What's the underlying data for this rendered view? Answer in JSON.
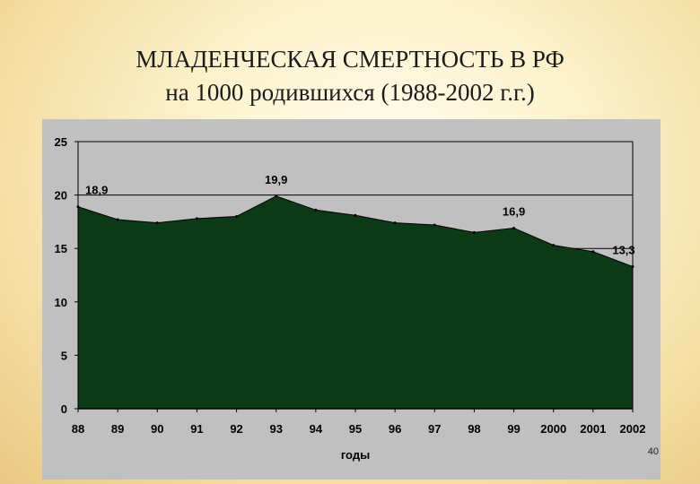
{
  "slide": {
    "title_line1": "МЛАДЕНЧЕСКАЯ СМЕРТНОСТЬ В РФ",
    "title_line2": "на 1000 родившихся (1988-2002 г.г.)",
    "page_number": "40"
  },
  "chart_data": {
    "type": "area",
    "title": "",
    "xlabel": "годы",
    "ylabel": "",
    "categories": [
      "88",
      "89",
      "90",
      "91",
      "92",
      "93",
      "94",
      "95",
      "96",
      "97",
      "98",
      "99",
      "2000",
      "2001",
      "2002"
    ],
    "values": [
      18.9,
      17.7,
      17.4,
      17.8,
      18.0,
      19.9,
      18.6,
      18.1,
      17.4,
      17.2,
      16.5,
      16.9,
      15.3,
      14.7,
      13.3
    ],
    "data_labels": [
      {
        "category": "88",
        "text": "18,9"
      },
      {
        "category": "93",
        "text": "19,9"
      },
      {
        "category": "99",
        "text": "16,9"
      },
      {
        "category": "2002",
        "text": "13,3"
      }
    ],
    "yticks": [
      "0",
      "5",
      "10",
      "15",
      "20",
      "25"
    ],
    "ylim": [
      0,
      25
    ],
    "grid": true,
    "colors": {
      "fill": "#0c3a16",
      "plot_background": "#c0c0c0",
      "panel_background": "#c0c0c0",
      "gridline": "#000000"
    }
  }
}
